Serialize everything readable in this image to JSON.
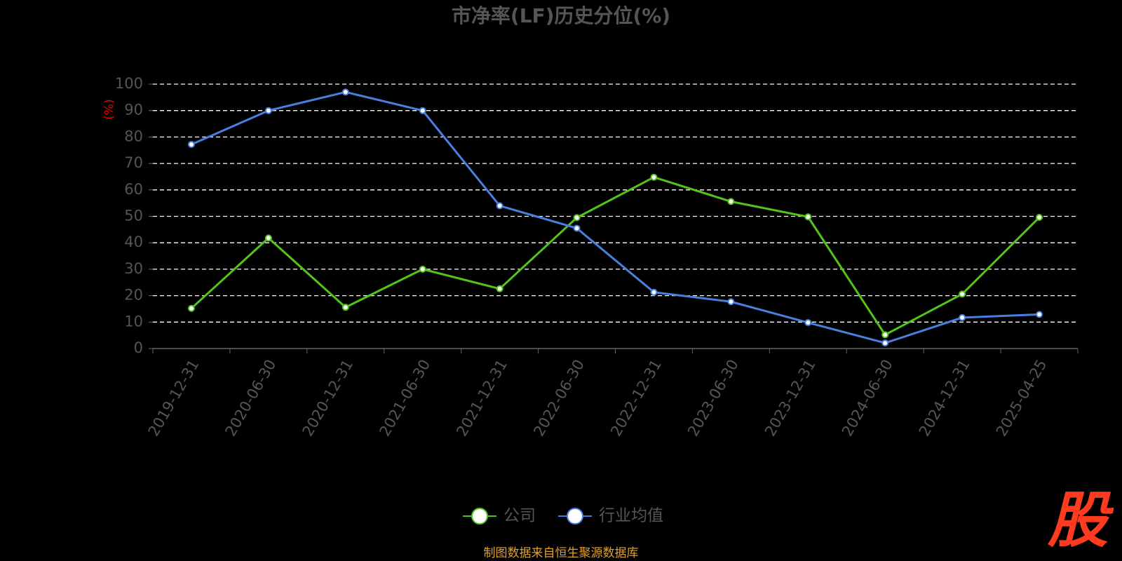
{
  "chart_data": {
    "type": "line",
    "title": "市净率(LF)历史分位(%)",
    "y_label": "(%)",
    "categories": [
      "2019-12-31",
      "2020-06-30",
      "2020-12-31",
      "2021-06-30",
      "2021-12-31",
      "2022-06-30",
      "2022-12-31",
      "2023-06-30",
      "2023-12-31",
      "2024-06-30",
      "2024-12-31",
      "2025-04-25"
    ],
    "series": [
      {
        "name": "公司",
        "color": "#52c41a",
        "values": [
          15.2,
          41.8,
          15.6,
          30.0,
          22.6,
          49.5,
          64.8,
          55.6,
          49.8,
          5.2,
          20.6,
          49.6
        ]
      },
      {
        "name": "行业均值",
        "color": "#4a7fe0",
        "values": [
          77.2,
          90.0,
          97.0,
          90.0,
          54.0,
          45.5,
          21.3,
          17.7,
          9.8,
          2.1,
          11.7,
          12.9
        ]
      }
    ],
    "ylim": [
      0,
      100
    ],
    "yticks": [
      0,
      10,
      20,
      30,
      40,
      50,
      60,
      70,
      80,
      90,
      100
    ],
    "grid": true,
    "source": "制图数据来自恒生聚源数据库",
    "watermark": "股"
  }
}
